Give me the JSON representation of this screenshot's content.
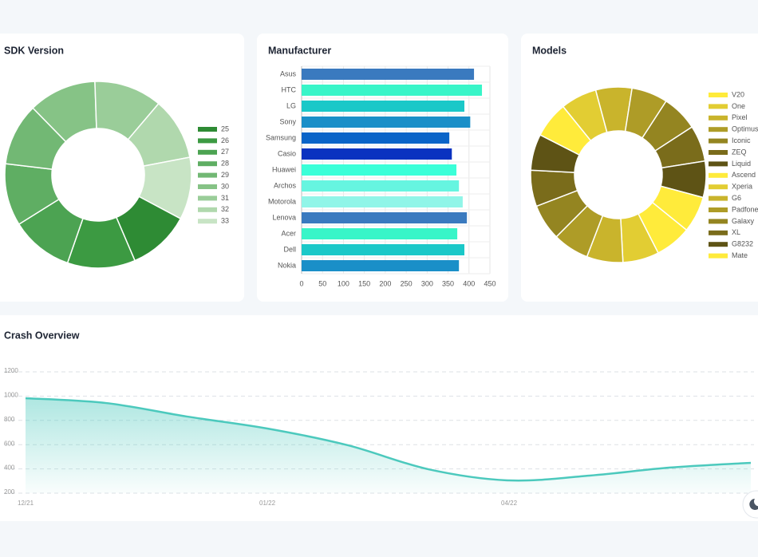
{
  "chart_data": [
    {
      "type": "donut",
      "title": "SDK Version",
      "categories": [
        "25",
        "26",
        "27",
        "28",
        "29",
        "30",
        "31",
        "32",
        "33"
      ],
      "values": [
        11,
        12,
        11,
        11,
        11,
        12,
        12,
        11,
        11
      ],
      "colors": [
        "#2e8b34",
        "#3c9a42",
        "#4ca352",
        "#5fae63",
        "#72b874",
        "#86c386",
        "#9acd99",
        "#b0d8ad",
        "#c8e4c5"
      ],
      "legend": "right"
    },
    {
      "type": "hbar",
      "title": "Manufacturer",
      "categories": [
        "Asus",
        "HTC",
        "LG",
        "Sony",
        "Samsung",
        "Casio",
        "Huawei",
        "Archos",
        "Motorola",
        "Lenova",
        "Acer",
        "Dell",
        "Nokia"
      ],
      "values": [
        412,
        431,
        389,
        403,
        353,
        359,
        370,
        376,
        385,
        395,
        372,
        389,
        376
      ],
      "colors": [
        "#3a7abf",
        "#38f5c8",
        "#1ac8c8",
        "#1a8fc8",
        "#0a64c8",
        "#0a32c0",
        "#3affd8",
        "#66f5e0",
        "#90f5e8",
        "#3a7abf",
        "#38f5c8",
        "#1ac8c8",
        "#1a8fc8"
      ],
      "xlim": [
        0,
        450
      ],
      "xticks": [
        0,
        50,
        100,
        150,
        200,
        250,
        300,
        350,
        400,
        450
      ],
      "grid": true
    },
    {
      "type": "donut",
      "title": "Models",
      "categories": [
        "V20",
        "One",
        "Pixel",
        "Optimus",
        "Iconic",
        "ZEQ",
        "Liquid",
        "Ascend",
        "Xperia",
        "G6",
        "Padfone",
        "Galaxy",
        "XL",
        "G8232",
        "Mate"
      ],
      "values": [
        10,
        10,
        10,
        10,
        10,
        10,
        10,
        10,
        10,
        10,
        10,
        10,
        10,
        10,
        10
      ],
      "colors": [
        "#ffeb3b",
        "#e2cd33",
        "#c9b42c",
        "#ae9c27",
        "#948521",
        "#7a6c1b",
        "#5e5315",
        "#ffeb3b",
        "#e2cd33",
        "#c9b42c",
        "#ae9c27",
        "#948521",
        "#7a6c1b",
        "#5e5315",
        "#ffeb3b"
      ],
      "legend": "right"
    },
    {
      "type": "area",
      "title": "Crash Overview",
      "categories": [
        "12/21",
        null,
        null,
        "01/22",
        null,
        null,
        "04/22",
        null,
        null,
        null
      ],
      "values": [
        983,
        943,
        832,
        733,
        595,
        397,
        305,
        345,
        411,
        450
      ],
      "color": "#4cc9bd",
      "ylim": [
        200,
        1200
      ],
      "yticks": [
        200,
        400,
        600,
        800,
        1000,
        1200
      ],
      "grid": true
    }
  ]
}
